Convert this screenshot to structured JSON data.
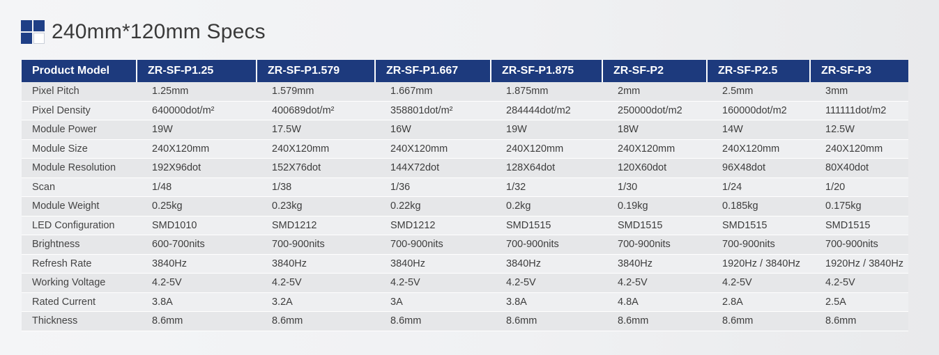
{
  "page": {
    "title": "240mm*120mm Specs"
  },
  "table": {
    "headers": [
      "Product Model",
      "ZR-SF-P1.25",
      "ZR-SF-P1.579",
      "ZR-SF-P1.667",
      "ZR-SF-P1.875",
      "ZR-SF-P2",
      "ZR-SF-P2.5",
      "ZR-SF-P3"
    ],
    "rows": [
      [
        "Pixel Pitch",
        "1.25mm",
        "1.579mm",
        "1.667mm",
        "1.875mm",
        "2mm",
        "2.5mm",
        "3mm"
      ],
      [
        "Pixel Density",
        "640000dot/m²",
        "400689dot/m²",
        "358801dot/m²",
        "284444dot/m2",
        "250000dot/m2",
        "160000dot/m2",
        "111111dot/m2"
      ],
      [
        "Module Power",
        "19W",
        "17.5W",
        "16W",
        "19W",
        "18W",
        "14W",
        "12.5W"
      ],
      [
        "Module Size",
        "240X120mm",
        "240X120mm",
        "240X120mm",
        "240X120mm",
        "240X120mm",
        "240X120mm",
        "240X120mm"
      ],
      [
        "Module Resolution",
        "192X96dot",
        "152X76dot",
        "144X72dot",
        "128X64dot",
        "120X60dot",
        "96X48dot",
        "80X40dot"
      ],
      [
        "Scan",
        "1/48",
        "1/38",
        "1/36",
        "1/32",
        "1/30",
        "1/24",
        "1/20"
      ],
      [
        "Module Weight",
        "0.25kg",
        "0.23kg",
        "0.22kg",
        "0.2kg",
        "0.19kg",
        "0.185kg",
        "0.175kg"
      ],
      [
        "LED Configuration",
        "SMD1010",
        "SMD1212",
        "SMD1212",
        "SMD1515",
        "SMD1515",
        "SMD1515",
        "SMD1515"
      ],
      [
        "Brightness",
        "600-700nits",
        "700-900nits",
        "700-900nits",
        "700-900nits",
        "700-900nits",
        "700-900nits",
        "700-900nits"
      ],
      [
        "Refresh Rate",
        "3840Hz",
        "3840Hz",
        "3840Hz",
        "3840Hz",
        "3840Hz",
        "1920Hz / 3840Hz",
        "1920Hz / 3840Hz"
      ],
      [
        "Working Voltage",
        "4.2-5V",
        "4.2-5V",
        "4.2-5V",
        "4.2-5V",
        "4.2-5V",
        "4.2-5V",
        "4.2-5V"
      ],
      [
        "Rated Current",
        "3.8A",
        "3.2A",
        "3A",
        "3.8A",
        "4.8A",
        "2.8A",
        "2.5A"
      ],
      [
        "Thickness",
        "8.6mm",
        "8.6mm",
        "8.6mm",
        "8.6mm",
        "8.6mm",
        "8.6mm",
        "8.6mm"
      ]
    ]
  },
  "colors": {
    "header_bg": "#1d3a7d",
    "brand_blue": "#1f3f86"
  },
  "icons": {
    "title_icon": "grid-squares-icon"
  }
}
